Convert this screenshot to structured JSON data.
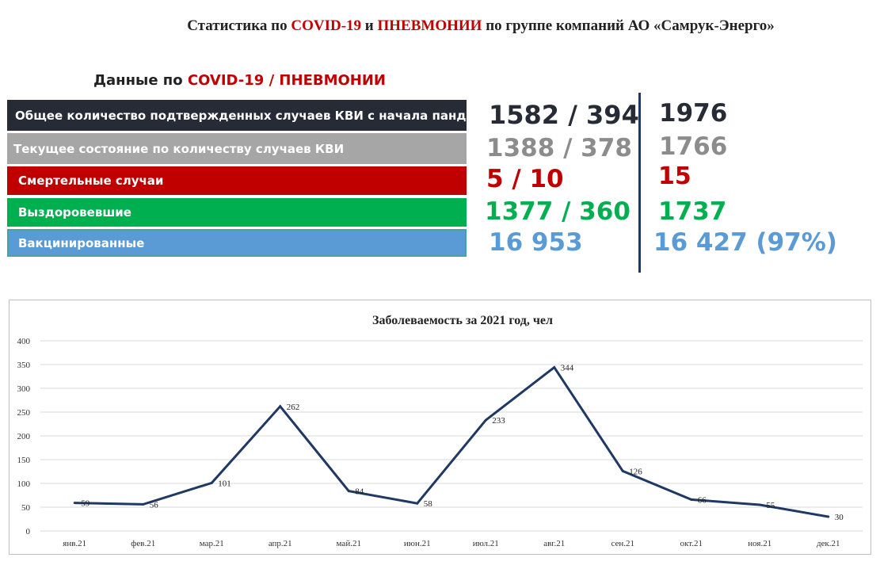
{
  "header": {
    "title_part1": "Статистика  по ",
    "title_covid": "COVID-19",
    "title_and": "  и ",
    "title_pneumonia": "ПНЕВМОНИИ",
    "title_part2": "  по группе компаний АО «Самрук-Энерго»"
  },
  "section": {
    "title_part1": "Данные по ",
    "title_red": "COVID-19 / ПНЕВМОНИИ"
  },
  "stats": [
    {
      "label": "Общее количество подтвержденных случаев КВИ с начала пандемии",
      "value": "1582 / 394",
      "total": "1976"
    },
    {
      "label": "Текущее состояние по количеству случаев КВИ",
      "value": "1388 / 378",
      "total": "1766"
    },
    {
      "label": "Смертельные случаи",
      "value": "5 / 10",
      "total": "15"
    },
    {
      "label": "Выздоровевшие",
      "value": "1377 / 360",
      "total": "1737"
    },
    {
      "label": "Вакцинированные",
      "value": "16 953",
      "total": "16 427 (97%)"
    }
  ],
  "colors": {
    "dark": "#262b35",
    "grey": "#a6a6a6",
    "red": "#c00000",
    "green": "#00b050",
    "blue": "#5b9bd5",
    "line": "#1f3864"
  },
  "chart_data": {
    "type": "line",
    "title": "Заболеваемость за 2021 год, чел",
    "categories": [
      "янв.21",
      "фев.21",
      "мар.21",
      "апр.21",
      "май.21",
      "июн.21",
      "июл.21",
      "авг.21",
      "сен.21",
      "окт.21",
      "ноя.21",
      "дек.21"
    ],
    "values": [
      59,
      56,
      101,
      262,
      84,
      58,
      233,
      344,
      126,
      66,
      55,
      30
    ],
    "ylim": [
      0,
      400
    ],
    "yticks": [
      0,
      50,
      100,
      150,
      200,
      250,
      300,
      350,
      400
    ],
    "grid": true,
    "xlabel": "",
    "ylabel": ""
  }
}
